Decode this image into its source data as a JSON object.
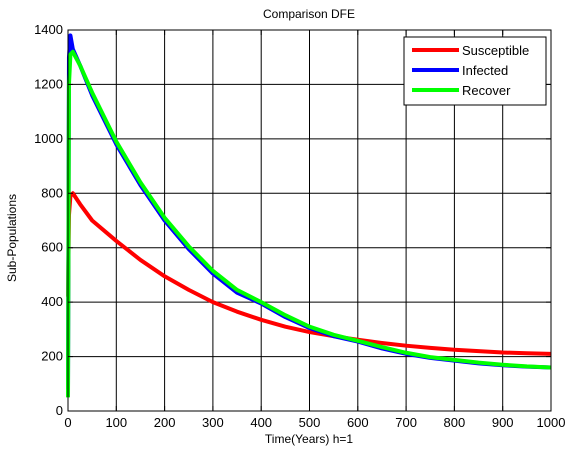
{
  "chart_data": {
    "type": "line",
    "title": "Comparison DFE",
    "xlabel": "Time(Years) h=1",
    "ylabel": "Sub-Populations",
    "xlim": [
      0,
      1000
    ],
    "ylim": [
      0,
      1400
    ],
    "xticks": [
      0,
      100,
      200,
      300,
      400,
      500,
      600,
      700,
      800,
      900,
      1000
    ],
    "yticks": [
      0,
      200,
      400,
      600,
      800,
      1000,
      1200,
      1400
    ],
    "grid": true,
    "legend_position": "top-right",
    "series": [
      {
        "name": "Susceptible",
        "color": "#ff0000",
        "x": [
          0,
          2,
          5,
          10,
          25,
          50,
          100,
          150,
          200,
          250,
          300,
          350,
          400,
          450,
          500,
          550,
          600,
          650,
          700,
          750,
          800,
          850,
          900,
          950,
          1000
        ],
        "y": [
          420,
          720,
          790,
          800,
          760,
          700,
          625,
          555,
          495,
          445,
          400,
          365,
          335,
          310,
          290,
          275,
          262,
          250,
          240,
          232,
          225,
          220,
          215,
          212,
          210
        ]
      },
      {
        "name": "Infected",
        "color": "#0000ff",
        "x": [
          0,
          2,
          5,
          10,
          25,
          50,
          100,
          150,
          200,
          250,
          300,
          350,
          400,
          450,
          500,
          550,
          600,
          650,
          700,
          750,
          800,
          850,
          900,
          950,
          1000
        ],
        "y": [
          80,
          1300,
          1380,
          1330,
          1270,
          1160,
          980,
          830,
          700,
          595,
          505,
          435,
          395,
          345,
          305,
          275,
          255,
          230,
          210,
          195,
          185,
          175,
          168,
          163,
          160
        ]
      },
      {
        "name": "Recover",
        "color": "#00ff00",
        "x": [
          0,
          2,
          5,
          10,
          25,
          50,
          100,
          150,
          200,
          250,
          300,
          350,
          400,
          450,
          500,
          550,
          600,
          650,
          700,
          750,
          800,
          850,
          900,
          950,
          1000
        ],
        "y": [
          50,
          1200,
          1310,
          1320,
          1270,
          1170,
          990,
          840,
          710,
          605,
          515,
          445,
          400,
          352,
          310,
          280,
          258,
          235,
          214,
          198,
          188,
          178,
          170,
          164,
          160
        ]
      }
    ]
  }
}
